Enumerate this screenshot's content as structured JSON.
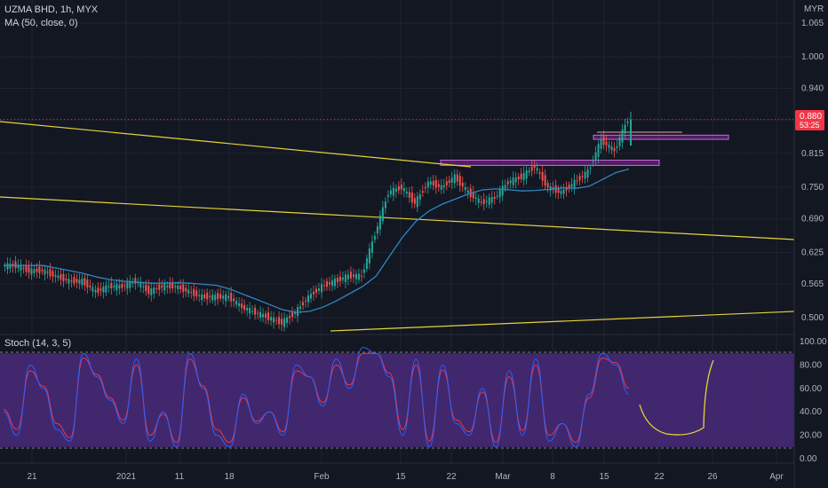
{
  "header": {
    "symbol_line": "UZMA BHD, 1h, MYX",
    "ma_indicator": "MA (50, close, 0)",
    "stoch_indicator": "Stoch (14, 3, 5)",
    "currency": "MYR"
  },
  "colors": {
    "background": "#131722",
    "grid": "#1f2330",
    "candle_up": "#26a69a",
    "candle_down": "#ef5350",
    "ma_line": "#2e86c1",
    "trendline": "#e6d23c",
    "zone_fill": "#9c27b0",
    "stoch_band": "#4a2a7a",
    "stoch_k": "#2962ff",
    "stoch_d": "#f23645",
    "price_label": "#f23645"
  },
  "price_label": {
    "price": "0.880",
    "countdown": "53:25"
  },
  "chart_data": [
    {
      "type": "candlestick",
      "title": "UZMA BHD, 1h, MYX",
      "ylabel": "MYR",
      "y_ticks": [
        "1.065",
        "1.000",
        "0.940",
        "0.880",
        "0.815",
        "0.750",
        "0.690",
        "0.625",
        "0.565",
        "0.500"
      ],
      "ylim": [
        0.47,
        1.08
      ],
      "x_ticks": [
        "21",
        "2021",
        "11",
        "18",
        "Feb",
        "15",
        "22",
        "Mar",
        "8",
        "15",
        "22",
        "26",
        "Apr"
      ],
      "series": [
        {
          "name": "MA (50, close, 0)",
          "values": [
            0.6,
            0.6,
            0.6,
            0.6,
            0.595,
            0.59,
            0.585,
            0.578,
            0.573,
            0.57,
            0.568,
            0.566,
            0.566,
            0.567,
            0.566,
            0.564,
            0.562,
            0.555,
            0.545,
            0.535,
            0.525,
            0.515,
            0.51,
            0.512,
            0.52,
            0.532,
            0.546,
            0.56,
            0.58,
            0.618,
            0.655,
            0.685,
            0.705,
            0.718,
            0.728,
            0.738,
            0.745,
            0.747,
            0.745,
            0.743,
            0.744,
            0.746,
            0.749,
            0.748,
            0.752,
            0.765,
            0.778,
            0.785
          ]
        }
      ],
      "close_series": [
        0.6,
        0.6,
        0.59,
        0.59,
        0.58,
        0.57,
        0.57,
        0.55,
        0.56,
        0.56,
        0.57,
        0.55,
        0.56,
        0.56,
        0.55,
        0.54,
        0.54,
        0.54,
        0.52,
        0.51,
        0.5,
        0.49,
        0.51,
        0.54,
        0.56,
        0.57,
        0.58,
        0.58,
        0.66,
        0.74,
        0.75,
        0.72,
        0.76,
        0.75,
        0.77,
        0.74,
        0.72,
        0.73,
        0.76,
        0.77,
        0.79,
        0.75,
        0.74,
        0.76,
        0.78,
        0.84,
        0.82,
        0.88
      ],
      "zones": [
        {
          "price_from": 0.792,
          "price_to": 0.802
        },
        {
          "price_from": 0.842,
          "price_to": 0.85
        }
      ]
    },
    {
      "type": "line",
      "title": "Stoch (14, 3, 5)",
      "y_ticks": [
        "100.00",
        "80.00",
        "60.00",
        "40.00",
        "20.00",
        "0.00"
      ],
      "ylim": [
        0,
        100
      ],
      "band": [
        10,
        90
      ],
      "series": [
        {
          "name": "%K",
          "values": [
            40,
            20,
            80,
            60,
            25,
            15,
            90,
            70,
            50,
            30,
            85,
            15,
            40,
            10,
            90,
            60,
            20,
            10,
            55,
            30,
            40,
            20,
            80,
            70,
            45,
            85,
            60,
            95,
            90,
            70,
            20,
            85,
            10,
            80,
            30,
            20,
            60,
            10,
            75,
            20,
            85,
            15,
            30,
            10,
            55,
            90,
            80,
            55
          ]
        },
        {
          "name": "%D",
          "values": [
            42,
            25,
            75,
            62,
            30,
            18,
            86,
            72,
            52,
            33,
            80,
            20,
            38,
            14,
            85,
            62,
            25,
            14,
            52,
            32,
            40,
            23,
            75,
            70,
            48,
            80,
            63,
            90,
            90,
            73,
            25,
            80,
            15,
            76,
            33,
            23,
            57,
            14,
            70,
            24,
            80,
            20,
            30,
            14,
            52,
            86,
            82,
            60
          ]
        }
      ]
    }
  ]
}
